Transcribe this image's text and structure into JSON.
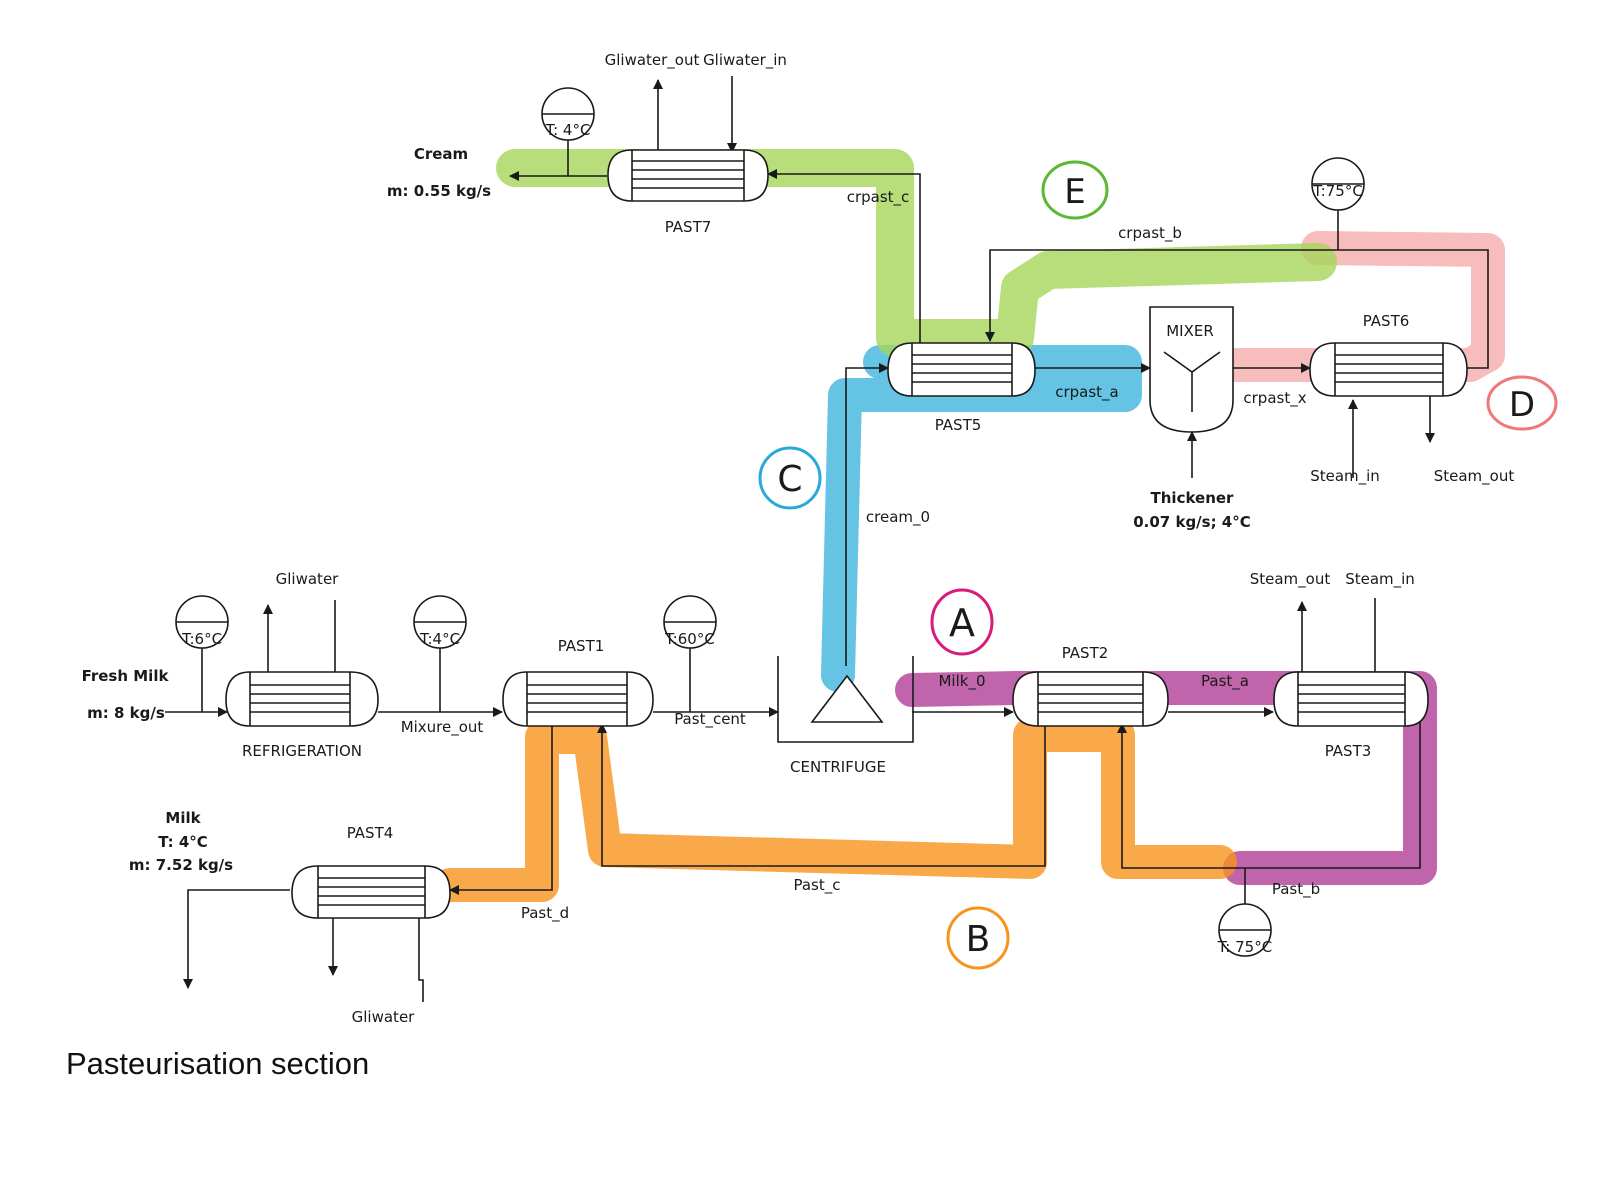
{
  "caption": "Pasteurisation section",
  "colors": {
    "path_a": "#b54a9e",
    "path_b": "#f7941d",
    "path_c": "#3fb4dc",
    "path_d": "#f4a6a6",
    "path_e": "#a6d65a",
    "marker_a": "#d81b7a",
    "marker_b": "#f7941d",
    "marker_c": "#2aa8d8",
    "marker_d": "#f07878",
    "marker_e": "#5cb832"
  },
  "markers": {
    "a": "A",
    "b": "B",
    "c": "C",
    "d": "D",
    "e": "E"
  },
  "units": {
    "refrigeration": "REFRIGERATION",
    "past1": "PAST1",
    "centrifuge": "CENTRIFUGE",
    "past2": "PAST2",
    "past3": "PAST3",
    "past4": "PAST4",
    "past5": "PAST5",
    "past6": "PAST6",
    "past7": "PAST7",
    "mixer": "MIXER"
  },
  "streams": {
    "gliwater_refrig": "Gliwater",
    "mixure_out": "Mixure_out",
    "past_cent": "Past_cent",
    "milk_0": "Milk_0",
    "past_a": "Past_a",
    "past_b": "Past_b",
    "past_c": "Past_c",
    "past_d": "Past_d",
    "gliwater_past4": "Gliwater",
    "steam_out_past3": "Steam_out",
    "steam_in_past3": "Steam_in",
    "cream_0": "cream_0",
    "crpast_a": "crpast_a",
    "crpast_b": "crpast_b",
    "crpast_c": "crpast_c",
    "crpast_x": "crpast_x",
    "steam_in_past6": "Steam_in",
    "steam_out_past6": "Steam_out",
    "gliwater_out": "Gliwater_out",
    "gliwater_in": "Gliwater_in"
  },
  "sensors": {
    "s1": "T:6°C",
    "s2": "T:4°C",
    "s3": "T:60°C",
    "s4": "T: 75°C",
    "s5": "T:75°C",
    "s6": "T: 4°C"
  },
  "inlets": {
    "fresh_milk": "Fresh Milk",
    "fresh_milk_flow": "m: 8 kg/s",
    "thickener": "Thickener",
    "thickener_spec": "0.07 kg/s; 4°C"
  },
  "outlets": {
    "milk": "Milk",
    "milk_temp": "T: 4°C",
    "milk_flow": "m: 7.52 kg/s",
    "cream": "Cream",
    "cream_flow": "m: 0.55 kg/s"
  }
}
